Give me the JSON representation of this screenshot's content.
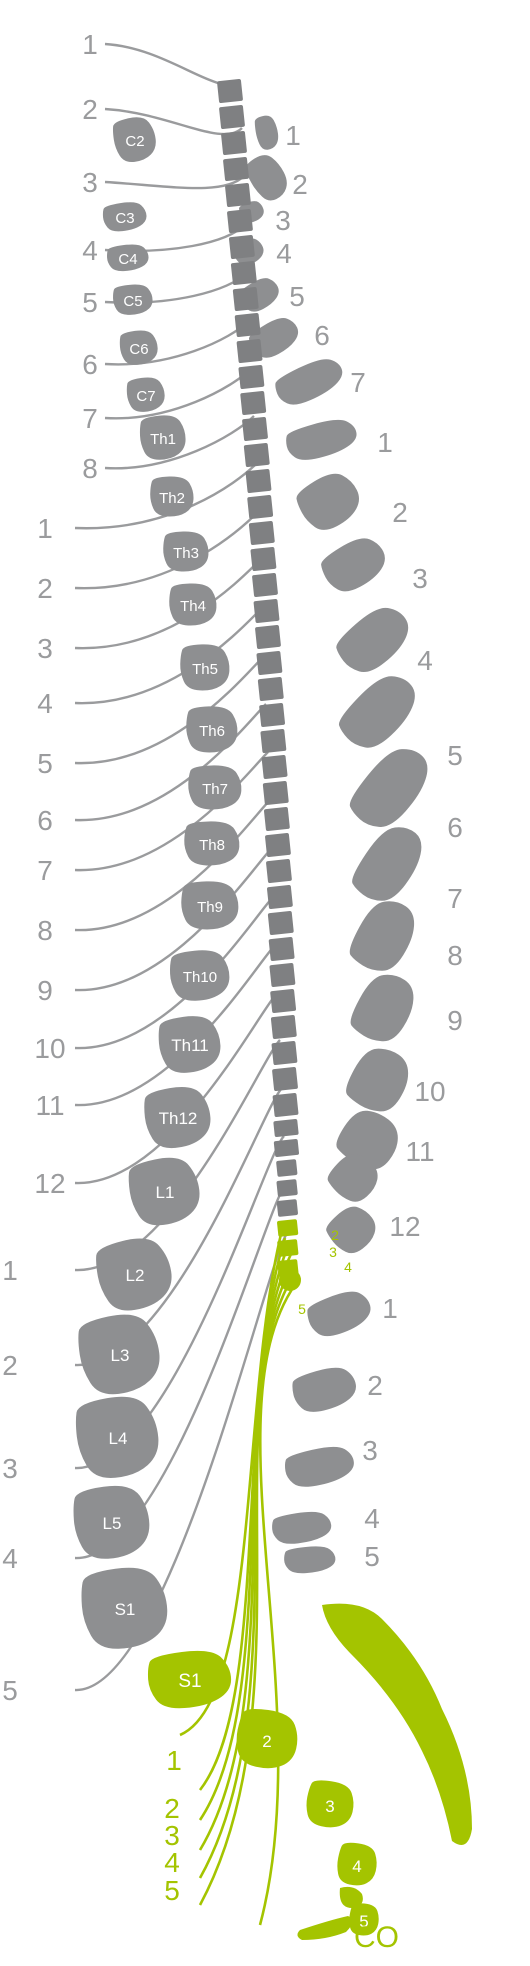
{
  "colors": {
    "bone": "#8e8f91",
    "bone_dark": "#7f8082",
    "bone_text": "#ffffff",
    "nerve_gray": "#9a9b9d",
    "label_gray": "#9a9b9d",
    "accent": "#a4c400",
    "accent_dark": "#8fb000"
  },
  "icons": {
    "vertebra": "rounded-blob",
    "spinal-cord": "segmented-column",
    "nerve": "curved-line"
  },
  "vertebrae": [
    {
      "key": "c2",
      "label": "C2"
    },
    {
      "key": "c3",
      "label": "C3"
    },
    {
      "key": "c4",
      "label": "C4"
    },
    {
      "key": "c5",
      "label": "C5"
    },
    {
      "key": "c6",
      "label": "C6"
    },
    {
      "key": "c7",
      "label": "C7"
    },
    {
      "key": "th1",
      "label": "Th1"
    },
    {
      "key": "th2",
      "label": "Th2"
    },
    {
      "key": "th3",
      "label": "Th3"
    },
    {
      "key": "th4",
      "label": "Th4"
    },
    {
      "key": "th5",
      "label": "Th5"
    },
    {
      "key": "th6",
      "label": "Th6"
    },
    {
      "key": "th7",
      "label": "Th7"
    },
    {
      "key": "th8",
      "label": "Th8"
    },
    {
      "key": "th9",
      "label": "Th9"
    },
    {
      "key": "th10",
      "label": "Th10"
    },
    {
      "key": "th11",
      "label": "Th11"
    },
    {
      "key": "th12",
      "label": "Th12"
    },
    {
      "key": "l1",
      "label": "L1"
    },
    {
      "key": "l2",
      "label": "L2"
    },
    {
      "key": "l3",
      "label": "L3"
    },
    {
      "key": "l4",
      "label": "L4"
    },
    {
      "key": "l5",
      "label": "L5"
    },
    {
      "key": "s1",
      "label": "S1"
    },
    {
      "key": "s2",
      "label": "2"
    },
    {
      "key": "s3",
      "label": "3"
    },
    {
      "key": "s4",
      "label": "4"
    },
    {
      "key": "s5",
      "label": "5"
    }
  ],
  "left_labels": [
    "1",
    "2",
    "3",
    "4",
    "5",
    "6",
    "7",
    "8",
    "1",
    "2",
    "3",
    "4",
    "5",
    "6",
    "7",
    "8",
    "9",
    "10",
    "11",
    "12",
    "1",
    "2",
    "3",
    "4",
    "5"
  ],
  "right_labels": [
    "1",
    "2",
    "3",
    "4",
    "5",
    "6",
    "7",
    "1",
    "2",
    "3",
    "4",
    "5",
    "6",
    "7",
    "8",
    "9",
    "10",
    "11",
    "12",
    "1",
    "2",
    "3",
    "4",
    "5"
  ],
  "cord_labels": [
    "2",
    "3",
    "4",
    "5"
  ],
  "sacral_labels": [
    "1",
    "2",
    "3",
    "4",
    "5"
  ],
  "coccyx_label": "CO"
}
